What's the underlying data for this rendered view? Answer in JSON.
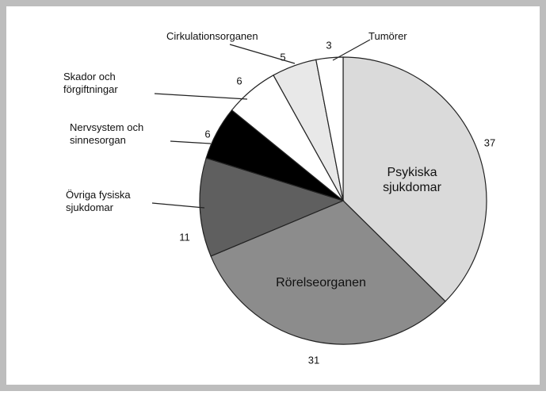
{
  "chart_data": {
    "type": "pie",
    "categories": [
      "Psykiska sjukdomar",
      "Rörelseorganen",
      "Övriga fysiska sjukdomar",
      "Nervsystem och sinnesorgan",
      "Skador och förgiftningar",
      "Cirkulationsorganen",
      "Tumörer"
    ],
    "values": [
      37,
      31,
      11,
      6,
      6,
      5,
      3
    ],
    "colors": [
      "#dadada",
      "#8c8c8c",
      "#5f5f5f",
      "#000000",
      "#ffffff",
      "#e8e8e8",
      "#ffffff"
    ]
  }
}
